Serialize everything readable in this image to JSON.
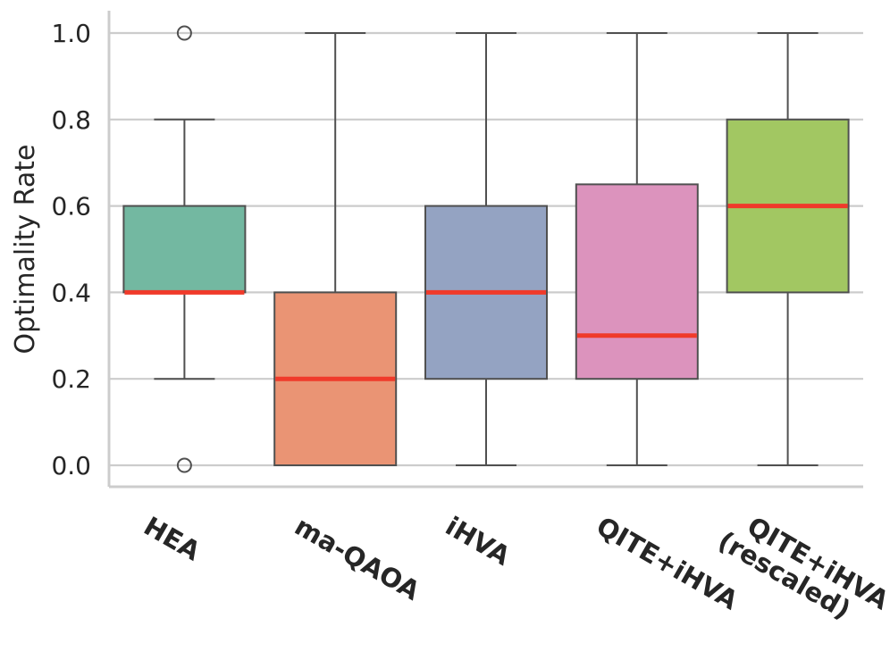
{
  "chart_data": {
    "type": "box",
    "title": "",
    "xlabel": "",
    "ylabel": "Optimality Rate",
    "ylim": [
      -0.05,
      1.05
    ],
    "yticks": [
      "0.0",
      "0.2",
      "0.4",
      "0.6",
      "0.8",
      "1.0"
    ],
    "grid": "horizontal",
    "categories": [
      {
        "label_lines": [
          "HEA"
        ],
        "whisker_low": 0.2,
        "q1": 0.4,
        "median": 0.4,
        "q3": 0.6,
        "whisker_high": 0.8,
        "outliers": [
          1.0,
          0.0
        ],
        "color": "#73b8a1"
      },
      {
        "label_lines": [
          "ma-QAOA"
        ],
        "whisker_low": 0.0,
        "q1": 0.0,
        "median": 0.2,
        "q3": 0.4,
        "whisker_high": 1.0,
        "outliers": [],
        "color": "#ea9474"
      },
      {
        "label_lines": [
          "iHVA"
        ],
        "whisker_low": 0.0,
        "q1": 0.2,
        "median": 0.4,
        "q3": 0.6,
        "whisker_high": 1.0,
        "outliers": [],
        "color": "#94a3c2"
      },
      {
        "label_lines": [
          "QITE+iHVA"
        ],
        "whisker_low": 0.0,
        "q1": 0.2,
        "median": 0.3,
        "q3": 0.65,
        "whisker_high": 1.0,
        "outliers": [],
        "color": "#dc93bd"
      },
      {
        "label_lines": [
          "QITE+iHVA",
          "(rescaled)"
        ],
        "whisker_low": 0.0,
        "q1": 0.4,
        "median": 0.6,
        "q3": 0.8,
        "whisker_high": 1.0,
        "outliers": [],
        "color": "#a2c762"
      }
    ],
    "median_color": "#f03a2a",
    "edge_color": "#505050"
  }
}
